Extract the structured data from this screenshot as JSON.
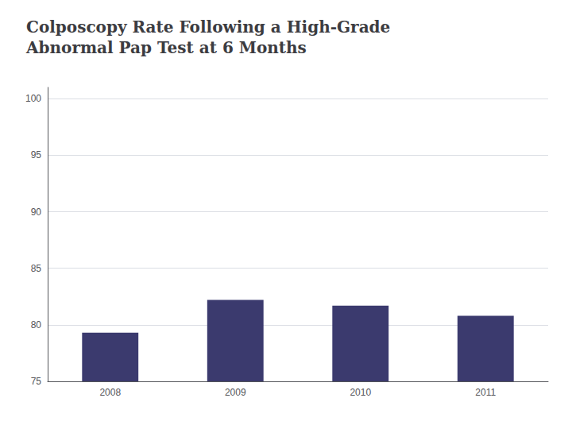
{
  "chart_data": {
    "type": "bar",
    "title": "Colposcopy Rate Following a High-Grade\nAbnormal Pap Test at 6 Months",
    "categories": [
      "2008",
      "2009",
      "2010",
      "2011"
    ],
    "values": [
      79.3,
      82.2,
      81.7,
      80.8
    ],
    "color": "#3b3a6e",
    "ylim": [
      75,
      101
    ],
    "yticks": [
      75,
      80,
      85,
      90,
      95,
      100
    ],
    "grid": true
  }
}
